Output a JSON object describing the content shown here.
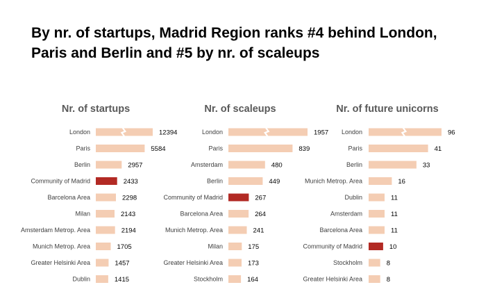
{
  "title": "By nr. of startups, Madrid Region ranks #4 behind London, Paris and Berlin and #5 by nr. of scaleups",
  "colors": {
    "bar": "#f4cdb3",
    "highlight": "#b22a24",
    "title_text": "#595959",
    "label_text": "#404040"
  },
  "chart_data": [
    {
      "type": "bar",
      "orientation": "horizontal",
      "title": "Nr. of startups",
      "categories": [
        "London",
        "Paris",
        "Berlin",
        "Community of Madrid",
        "Barcelona Area",
        "Milan",
        "Amsterdam Metrop. Area",
        "Munich Metrop. Area",
        "Greater Helsinki Area",
        "Dublin"
      ],
      "values": [
        12394,
        5584,
        2957,
        2433,
        2298,
        2143,
        2194,
        1705,
        1457,
        1415
      ],
      "value_labels": [
        "12394",
        "5584",
        "2957",
        "2433",
        "2298",
        "2143",
        "2194",
        "1705",
        "1457",
        "1415"
      ],
      "highlight": "Community of Madrid",
      "axis_break": "London",
      "xlim": [
        0,
        6500
      ]
    },
    {
      "type": "bar",
      "orientation": "horizontal",
      "title": "Nr. of scaleups",
      "categories": [
        "London",
        "Paris",
        "Amsterdam",
        "Berlin",
        "Community of Madrid",
        "Barcelona Area",
        "Munich Metrop. Area",
        "Milan",
        "Greater Helsinki Area",
        "Stockholm"
      ],
      "values": [
        1957,
        839,
        480,
        449,
        267,
        264,
        241,
        175,
        173,
        164
      ],
      "value_labels": [
        "1957",
        "839",
        "480",
        "449",
        "267",
        "264",
        "241",
        "175",
        "173",
        "164"
      ],
      "highlight": "Community of Madrid",
      "axis_break": "London",
      "xlim": [
        0,
        990
      ]
    },
    {
      "type": "bar",
      "orientation": "horizontal",
      "title": "Nr. of future unicorns",
      "categories": [
        "London",
        "Paris",
        "Berlin",
        "Munich Metrop. Area",
        "Dublin",
        "Amsterdam",
        "Barcelona Area",
        "Community of Madrid",
        "Stockholm",
        "Greater Helsinki Area"
      ],
      "values": [
        96,
        41,
        33,
        16,
        11,
        11,
        11,
        10,
        8,
        8
      ],
      "value_labels": [
        "96",
        "41",
        "33",
        "16",
        "11",
        "11",
        "11",
        "10",
        "8",
        "8"
      ],
      "highlight": "Community of Madrid",
      "axis_break": "London",
      "xlim": [
        0,
        46
      ]
    }
  ]
}
